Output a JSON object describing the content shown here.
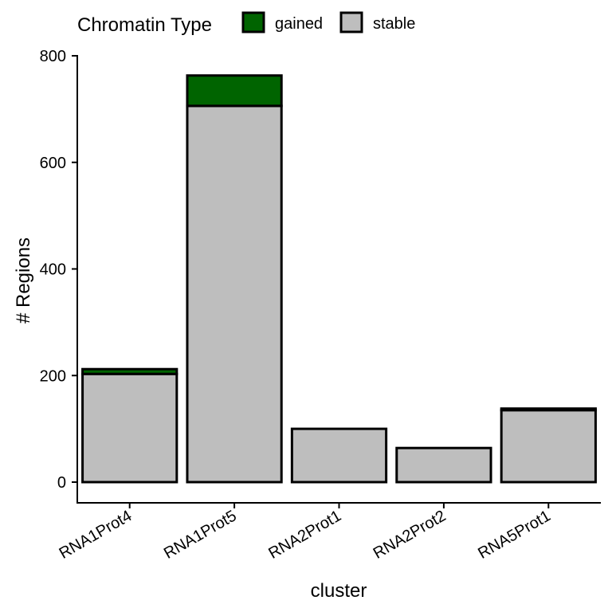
{
  "chart_data": {
    "type": "bar",
    "stacked": true,
    "title": "",
    "xlabel": "cluster",
    "ylabel": "# Regions",
    "ylim": [
      -40,
      800
    ],
    "yticks": [
      0,
      200,
      400,
      600,
      800
    ],
    "categories": [
      "RNA1Prot4",
      "RNA1Prot5",
      "RNA2Prot1",
      "RNA2Prot2",
      "RNA5Prot1"
    ],
    "series": [
      {
        "name": "stable",
        "color": "#bebebe",
        "values": [
          203,
          706,
          100,
          64,
          135
        ]
      },
      {
        "name": "gained",
        "color": "#006400",
        "values": [
          9,
          57,
          0,
          0,
          3
        ]
      }
    ],
    "legend": {
      "title": "Chromatin Type",
      "position": "top",
      "entries": [
        {
          "label": "gained",
          "color": "#006400"
        },
        {
          "label": "stable",
          "color": "#bebebe"
        }
      ]
    },
    "grid": false
  }
}
